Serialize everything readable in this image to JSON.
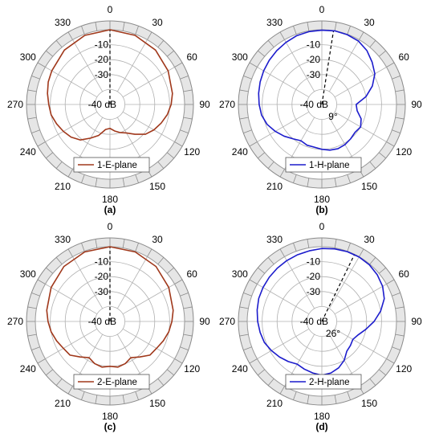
{
  "chart_data": [
    {
      "id": "a",
      "caption": "(a)",
      "type": "polar-line",
      "radial_unit": "dB",
      "rlim": [
        -50,
        0
      ],
      "radial_ticks": [
        -10,
        -20,
        -30,
        -40
      ],
      "radial_tick_labels": [
        "-10",
        "-20",
        "-30",
        "-40 dB"
      ],
      "angle_ticks": [
        0,
        30,
        60,
        90,
        120,
        150,
        180,
        210,
        240,
        270,
        300,
        330
      ],
      "angle_tick_labels": [
        "0",
        "30",
        "60",
        "90",
        "120",
        "150",
        "180",
        "210",
        "240",
        "270",
        "300",
        "330"
      ],
      "grid": true,
      "color": "#a0381b",
      "annotation": "",
      "beam_direction_deg": 0,
      "legend": {
        "label": "1-E-plane",
        "position": "bottom"
      },
      "series": [
        {
          "name": "1-E-plane",
          "theta": [
            0,
            20,
            40,
            60,
            80,
            90,
            100,
            110,
            120,
            130,
            140,
            150,
            160,
            170,
            180,
            190,
            200,
            210,
            220,
            230,
            240,
            250,
            260,
            270,
            280,
            290,
            300,
            320,
            340,
            360
          ],
          "r": [
            0,
            -0.8,
            -2.5,
            -5,
            -7.5,
            -9,
            -11,
            -13.5,
            -16,
            -19,
            -24,
            -28,
            -30,
            -32,
            -34,
            -33,
            -28,
            -24,
            -19,
            -16,
            -14,
            -12,
            -10,
            -9,
            -7.5,
            -6,
            -5,
            -2.5,
            -0.8,
            0
          ]
        }
      ]
    },
    {
      "id": "b",
      "caption": "(b)",
      "type": "polar-line",
      "radial_unit": "dB",
      "rlim": [
        -50,
        0
      ],
      "radial_ticks": [
        -10,
        -20,
        -30,
        -40
      ],
      "radial_tick_labels": [
        "-10",
        "-20",
        "-30",
        "-40 dB"
      ],
      "angle_ticks": [
        0,
        30,
        60,
        90,
        120,
        150,
        180,
        210,
        240,
        270,
        300,
        330
      ],
      "angle_tick_labels": [
        "0",
        "30",
        "60",
        "90",
        "120",
        "150",
        "180",
        "210",
        "240",
        "270",
        "300",
        "330"
      ],
      "grid": true,
      "color": "#1c1ccc",
      "annotation": "9°",
      "beam_direction_deg": 9,
      "legend": {
        "label": "1-H-plane",
        "position": "bottom"
      },
      "series": [
        {
          "name": "1-H-plane",
          "theta": [
            0,
            10,
            20,
            30,
            40,
            50,
            60,
            70,
            80,
            90,
            100,
            110,
            120,
            130,
            140,
            150,
            160,
            170,
            180,
            190,
            200,
            210,
            220,
            230,
            240,
            250,
            260,
            270,
            280,
            290,
            300,
            310,
            320,
            330,
            340,
            350,
            360
          ],
          "r": [
            -0.3,
            0,
            -0.3,
            -1,
            -3,
            -6,
            -9,
            -14,
            -20,
            -27,
            -26,
            -22,
            -20,
            -21,
            -20,
            -19,
            -18.5,
            -19,
            -20,
            -21,
            -21,
            -22,
            -20,
            -17,
            -14,
            -11,
            -9,
            -8,
            -7,
            -6,
            -5,
            -4,
            -3,
            -2,
            -1,
            -0.5,
            -0.3
          ]
        }
      ]
    },
    {
      "id": "c",
      "caption": "(c)",
      "type": "polar-line",
      "radial_unit": "dB",
      "rlim": [
        -50,
        0
      ],
      "radial_ticks": [
        -10,
        -20,
        -30,
        -40
      ],
      "radial_tick_labels": [
        "-10",
        "-20",
        "-30",
        "-40 dB"
      ],
      "angle_ticks": [
        0,
        30,
        60,
        90,
        120,
        150,
        180,
        210,
        240,
        270,
        300,
        330
      ],
      "angle_tick_labels": [
        "0",
        "30",
        "60",
        "90",
        "120",
        "150",
        "180",
        "210",
        "240",
        "270",
        "300",
        "330"
      ],
      "grid": true,
      "color": "#a0381b",
      "annotation": "",
      "beam_direction_deg": 0,
      "legend": {
        "label": "2-E-plane",
        "position": "bottom"
      },
      "series": [
        {
          "name": "2-E-plane",
          "theta": [
            0,
            20,
            40,
            60,
            80,
            90,
            100,
            110,
            120,
            130,
            140,
            150,
            160,
            170,
            180,
            190,
            200,
            210,
            220,
            230,
            240,
            250,
            260,
            270,
            280,
            300,
            320,
            340,
            360
          ],
          "r": [
            0,
            -0.5,
            -2,
            -4.5,
            -7,
            -8.5,
            -10,
            -12,
            -14,
            -15,
            -19,
            -22,
            -20,
            -19,
            -20,
            -19,
            -20,
            -22,
            -19,
            -15,
            -14,
            -12,
            -10,
            -8.5,
            -7,
            -4.5,
            -2,
            -0.5,
            0
          ]
        }
      ]
    },
    {
      "id": "d",
      "caption": "(d)",
      "type": "polar-line",
      "radial_unit": "dB",
      "rlim": [
        -50,
        0
      ],
      "radial_ticks": [
        -10,
        -20,
        -30,
        -40
      ],
      "radial_tick_labels": [
        "-10",
        "-20",
        "-30",
        "-40 dB"
      ],
      "angle_ticks": [
        0,
        30,
        60,
        90,
        120,
        150,
        180,
        210,
        240,
        270,
        300,
        330
      ],
      "angle_tick_labels": [
        "0",
        "30",
        "60",
        "90",
        "120",
        "150",
        "180",
        "210",
        "240",
        "270",
        "300",
        "330"
      ],
      "grid": true,
      "color": "#1c1ccc",
      "annotation": "26°",
      "beam_direction_deg": 26,
      "legend": {
        "label": "2-H-plane",
        "position": "bottom"
      },
      "series": [
        {
          "name": "2-H-plane",
          "theta": [
            0,
            10,
            20,
            30,
            40,
            50,
            60,
            70,
            80,
            90,
            100,
            110,
            120,
            130,
            140,
            150,
            160,
            170,
            180,
            190,
            200,
            210,
            220,
            230,
            240,
            250,
            260,
            270,
            280,
            290,
            300,
            310,
            320,
            330,
            340,
            350,
            360
          ],
          "r": [
            -1.2,
            -0.7,
            -0.3,
            -0.2,
            -0.5,
            -1.5,
            -3,
            -5.5,
            -10,
            -15,
            -20,
            -24,
            -26,
            -25,
            -24,
            -20,
            -17,
            -15,
            -14,
            -15,
            -16,
            -17,
            -15,
            -13,
            -11,
            -9,
            -8,
            -7,
            -6,
            -5,
            -4.5,
            -4,
            -3.5,
            -3,
            -2.5,
            -2,
            -1.2
          ]
        }
      ]
    }
  ]
}
